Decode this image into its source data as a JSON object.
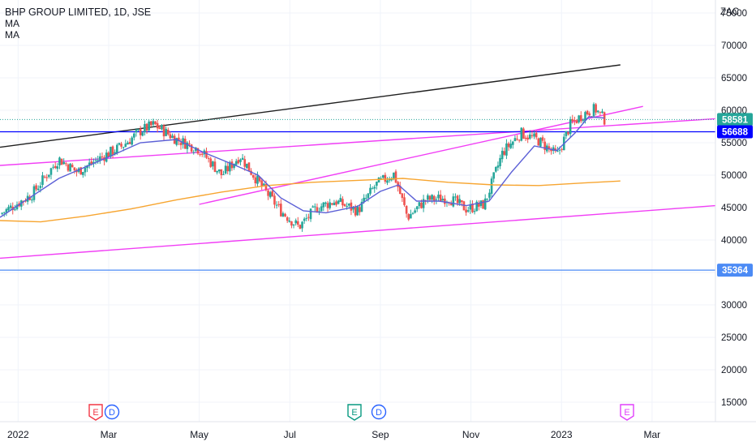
{
  "header": {
    "title": "BHP GROUP LIMITED, 1D, JSE",
    "indicators": [
      "MA",
      "MA"
    ],
    "currency": "ZAC"
  },
  "price_badges": [
    {
      "name": "last-price-badge",
      "value": "58581",
      "color": "#26a69a"
    },
    {
      "name": "support-line-badge",
      "value": "56688",
      "color": "#0000ff"
    },
    {
      "name": "low-level-badge",
      "value": "35364",
      "color": "#4c8bf5"
    }
  ],
  "events": [
    {
      "name": "earnings-event-marker-1",
      "letter": "E",
      "month": "Feb 2022",
      "color": "#f23645"
    },
    {
      "name": "dividend-event-marker-1",
      "letter": "D",
      "month": "Feb 2022",
      "color": "#2962ff"
    },
    {
      "name": "earnings-event-marker-2",
      "letter": "E",
      "month": "Aug 2022",
      "color": "#089981"
    },
    {
      "name": "dividend-event-marker-2",
      "letter": "D",
      "month": "Sep 2022",
      "color": "#2962ff"
    },
    {
      "name": "earnings-event-marker-3",
      "letter": "E",
      "month": "Feb 2023",
      "color": "#e040fb"
    }
  ],
  "colors": {
    "up": "#26a69a",
    "down": "#ef5350",
    "ma_fast": "#5b5fd6",
    "ma_slow": "#f7a530",
    "channel": "#f13ef5",
    "black_trend": "#1f1f1f",
    "support": "#0000ff",
    "low_line": "#4c8bf5",
    "grid": "#f0f3fa",
    "axis_text": "#131722"
  },
  "chart_data": {
    "type": "candlestick",
    "title": "BHP GROUP LIMITED, 1D, JSE",
    "yunit": "ZAC",
    "x_ticks": [
      "2022",
      "Mar",
      "May",
      "Jul",
      "Sep",
      "Nov",
      "2023",
      "Mar"
    ],
    "x_tick_months": [
      0,
      2,
      4,
      6,
      8,
      10,
      12,
      14
    ],
    "y_ticks": [
      15000,
      20000,
      25000,
      30000,
      35000,
      40000,
      45000,
      50000,
      55000,
      60000,
      65000,
      70000,
      75000
    ],
    "ylim": [
      12000,
      77000
    ],
    "xlim_months": [
      -0.4,
      15.4
    ],
    "last_price": 58581,
    "horizontal_levels": [
      56688,
      35364
    ],
    "price_path_months": [
      -0.4,
      0.3,
      0.9,
      1.3,
      1.9,
      2.3,
      2.7,
      3.0,
      3.5,
      4.0,
      4.5,
      4.9,
      5.3,
      5.8,
      6.2,
      6.6,
      7.0,
      7.5,
      7.9,
      8.3,
      8.6,
      9.0,
      9.5,
      9.9,
      10.3,
      10.7,
      11.1,
      11.5,
      11.9,
      12.2,
      12.5,
      12.75,
      12.95
    ],
    "price_path_values": [
      44000,
      47000,
      52500,
      50500,
      53000,
      54500,
      56800,
      57800,
      55500,
      54000,
      50000,
      53000,
      49000,
      44500,
      42000,
      45000,
      46000,
      44500,
      48500,
      50200,
      43500,
      46200,
      46500,
      44800,
      45500,
      53500,
      56500,
      55300,
      53000,
      57800,
      59500,
      60200,
      58581
    ],
    "ma_fast": {
      "x_months": [
        -0.4,
        0.9,
        1.9,
        2.7,
        3.5,
        4.1,
        4.8,
        5.3,
        5.8,
        6.3,
        6.8,
        7.5,
        8.0,
        8.4,
        8.8,
        9.3,
        9.9,
        10.4,
        10.9,
        11.4,
        11.9,
        12.3,
        12.6,
        12.95
      ],
      "values": [
        43500,
        49500,
        52500,
        55000,
        55500,
        53500,
        51500,
        50000,
        46500,
        44500,
        44200,
        45200,
        47500,
        48500,
        46000,
        46000,
        45300,
        46000,
        50500,
        54500,
        53800,
        56500,
        59000,
        58800
      ]
    },
    "ma_slow": {
      "x_months": [
        -0.4,
        0.5,
        1.5,
        2.5,
        3.5,
        4.5,
        5.5,
        6.5,
        7.5,
        8.5,
        9.5,
        10.5,
        11.5,
        12.5,
        13.3
      ],
      "values": [
        43000,
        42800,
        43700,
        44800,
        46200,
        47400,
        48400,
        48900,
        49200,
        49500,
        48900,
        48500,
        48400,
        48800,
        49100
      ]
    },
    "trendlines": [
      {
        "name": "black-trendline",
        "points": [
          [
            -0.4,
            54300
          ],
          [
            13.3,
            67000
          ]
        ]
      },
      {
        "name": "magenta-upper-channel",
        "points": [
          [
            -0.4,
            51500
          ],
          [
            15.4,
            58700
          ]
        ]
      },
      {
        "name": "magenta-lower-channel",
        "points": [
          [
            -0.4,
            37200
          ],
          [
            15.4,
            45300
          ]
        ]
      },
      {
        "name": "magenta-rising-line",
        "points": [
          [
            4.0,
            45500
          ],
          [
            13.8,
            60600
          ]
        ]
      }
    ]
  }
}
